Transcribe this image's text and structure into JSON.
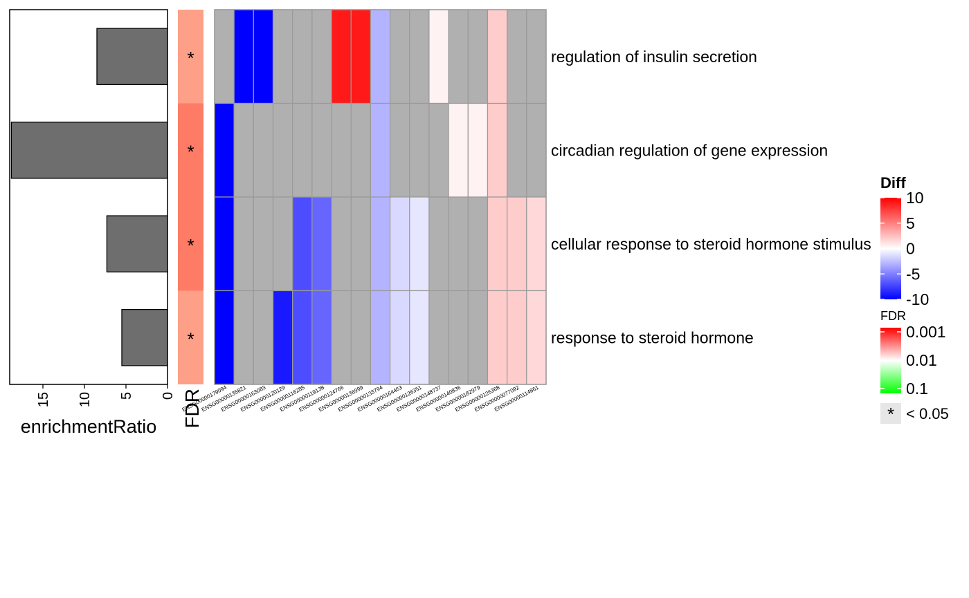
{
  "chart_data": [
    {
      "type": "bar",
      "orientation": "horizontal",
      "xaxis_reversed": true,
      "xlabel": "enrichmentRatio",
      "xlim": [
        0,
        19
      ],
      "xticks": [
        0,
        5,
        10,
        15
      ],
      "xtick_labels": [
        "0",
        "5",
        "10",
        "15"
      ],
      "categories": [
        "regulation of insulin secretion",
        "circadian regulation of gene expression",
        "cellular response to steroid hormone stimulus",
        "response to steroid hormone"
      ],
      "values": [
        8.5,
        18.8,
        7.3,
        5.5
      ],
      "bar_color": "#6e6e6e"
    },
    {
      "type": "heatmap",
      "title": "FDR",
      "columns": [
        "FDR"
      ],
      "rows": [
        "regulation of insulin secretion",
        "circadian regulation of gene expression",
        "cellular response to steroid hormone stimulus",
        "response to steroid hormone"
      ],
      "fill_colors": [
        "#fe9f88",
        "#fe7b66",
        "#fe7b66",
        "#fe9f88"
      ],
      "annotations": [
        "*",
        "*",
        "*",
        "*"
      ]
    },
    {
      "type": "heatmap",
      "columns": [
        "ENSG00000179094",
        "ENSG00000135821",
        "ENSG00000163083",
        "ENSG00000120129",
        "ENSG00000116285",
        "ENSG00000119138",
        "ENSG00000124766",
        "ENSG00000136999",
        "ENSG00000133794",
        "ENSG00000164463",
        "ENSG00000126351",
        "ENSG00000148737",
        "ENSG00000140836",
        "ENSG00000182979",
        "ENSG00000126368",
        "ENSG00000077092",
        "ENSG00000114861"
      ],
      "rows": [
        "regulation of insulin secretion",
        "circadian regulation of gene expression",
        "cellular response to steroid hormone stimulus",
        "response to steroid hormone"
      ],
      "values": [
        [
          null,
          -10,
          -10,
          null,
          null,
          null,
          9,
          9,
          -3,
          null,
          null,
          0.5,
          null,
          null,
          2,
          null,
          null
        ],
        [
          -10,
          null,
          null,
          null,
          null,
          null,
          null,
          null,
          -3,
          null,
          null,
          null,
          0.5,
          0.5,
          2,
          null,
          null
        ],
        [
          -10,
          null,
          null,
          null,
          -7,
          -6,
          null,
          null,
          -3,
          -1.5,
          -1,
          null,
          null,
          null,
          2,
          2,
          1.5
        ],
        [
          -10,
          null,
          null,
          -9,
          -7,
          -6,
          null,
          null,
          -3,
          -1.5,
          -1,
          null,
          null,
          null,
          2,
          2,
          1.5
        ]
      ],
      "na_color": "#b0b0b0"
    }
  ],
  "legend": {
    "diff": {
      "title": "Diff",
      "range": [
        -10,
        10
      ],
      "tick_values": [
        10,
        5,
        0,
        -5,
        -10
      ],
      "tick_labels": [
        "10",
        "5",
        "0",
        "-5",
        "-10"
      ],
      "colors": {
        "low": "#0000ff",
        "mid": "#ffffff",
        "high": "#ff0000"
      }
    },
    "fdr": {
      "title": "FDR",
      "tick_labels": [
        "0.001",
        "0.01",
        "0.1"
      ],
      "colors": {
        "top": "#ff0000",
        "mid": "#ffffff",
        "bottom": "#00ff00"
      }
    },
    "sig": {
      "symbol": "*",
      "label": "< 0.05"
    }
  }
}
